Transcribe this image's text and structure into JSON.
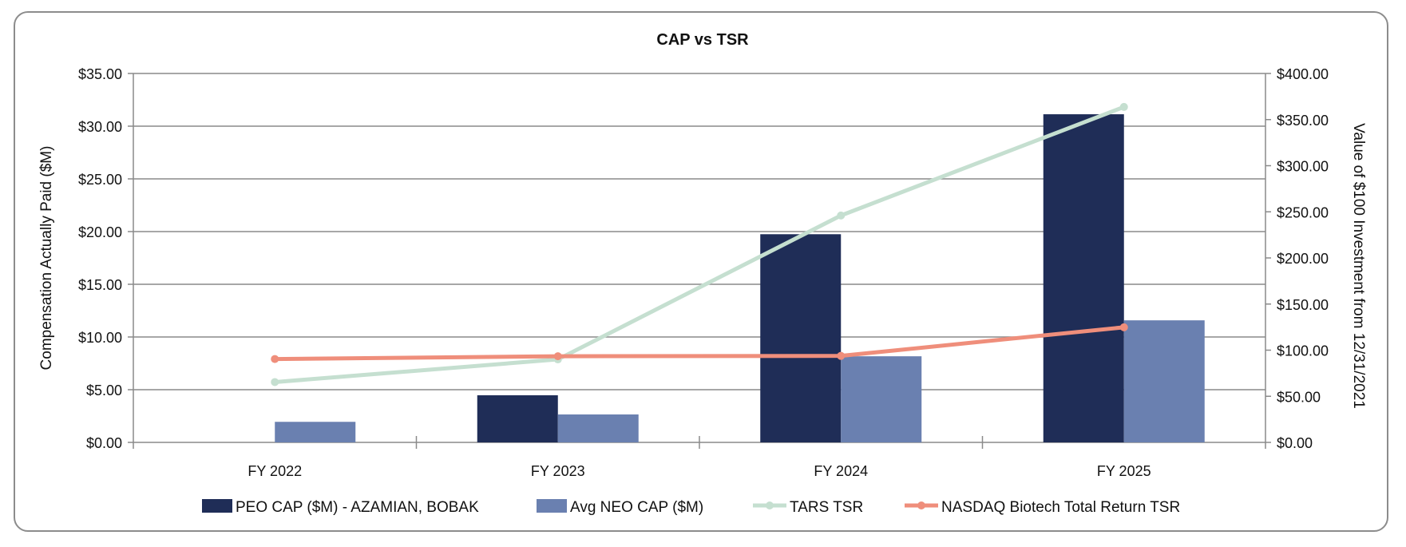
{
  "chart_data": {
    "type": "bar",
    "title": "CAP vs TSR",
    "categories": [
      "FY 2022",
      "FY 2023",
      "FY 2024",
      "FY 2025"
    ],
    "y_left": {
      "label": "Compensation Actually Paid ($M)",
      "range": [
        0,
        35
      ],
      "ticks": [
        "$0.00",
        "$5.00",
        "$10.00",
        "$15.00",
        "$20.00",
        "$25.00",
        "$30.00",
        "$35.00"
      ]
    },
    "y_right": {
      "label": "Value of $100 Investment from 12/31/2021",
      "range": [
        0,
        400
      ],
      "ticks": [
        "$0.00",
        "$50.00",
        "$100.00",
        "$150.00",
        "$200.00",
        "$250.00",
        "$300.00",
        "$350.00",
        "$400.00"
      ]
    },
    "grid": true,
    "legend_position": "bottom",
    "series": [
      {
        "name": "PEO CAP ($M) - AZAMIAN, BOBAK",
        "type": "bar",
        "axis": "left",
        "color": "#1f2d57",
        "values": [
          null,
          4.47,
          19.75,
          31.13
        ]
      },
      {
        "name": "Avg NEO CAP ($M)",
        "type": "bar",
        "axis": "left",
        "color": "#6a80b0",
        "values": [
          1.95,
          2.65,
          8.17,
          11.58
        ]
      },
      {
        "name": "TARS TSR",
        "type": "line",
        "axis": "right",
        "color": "#c5dfd0",
        "values": [
          65.4,
          90.0,
          246.0,
          363.7
        ]
      },
      {
        "name": "NASDAQ Biotech Total Return TSR",
        "type": "line",
        "axis": "right",
        "color": "#ef8e7b",
        "values": [
          90.4,
          93.4,
          93.8,
          124.8
        ]
      }
    ]
  }
}
